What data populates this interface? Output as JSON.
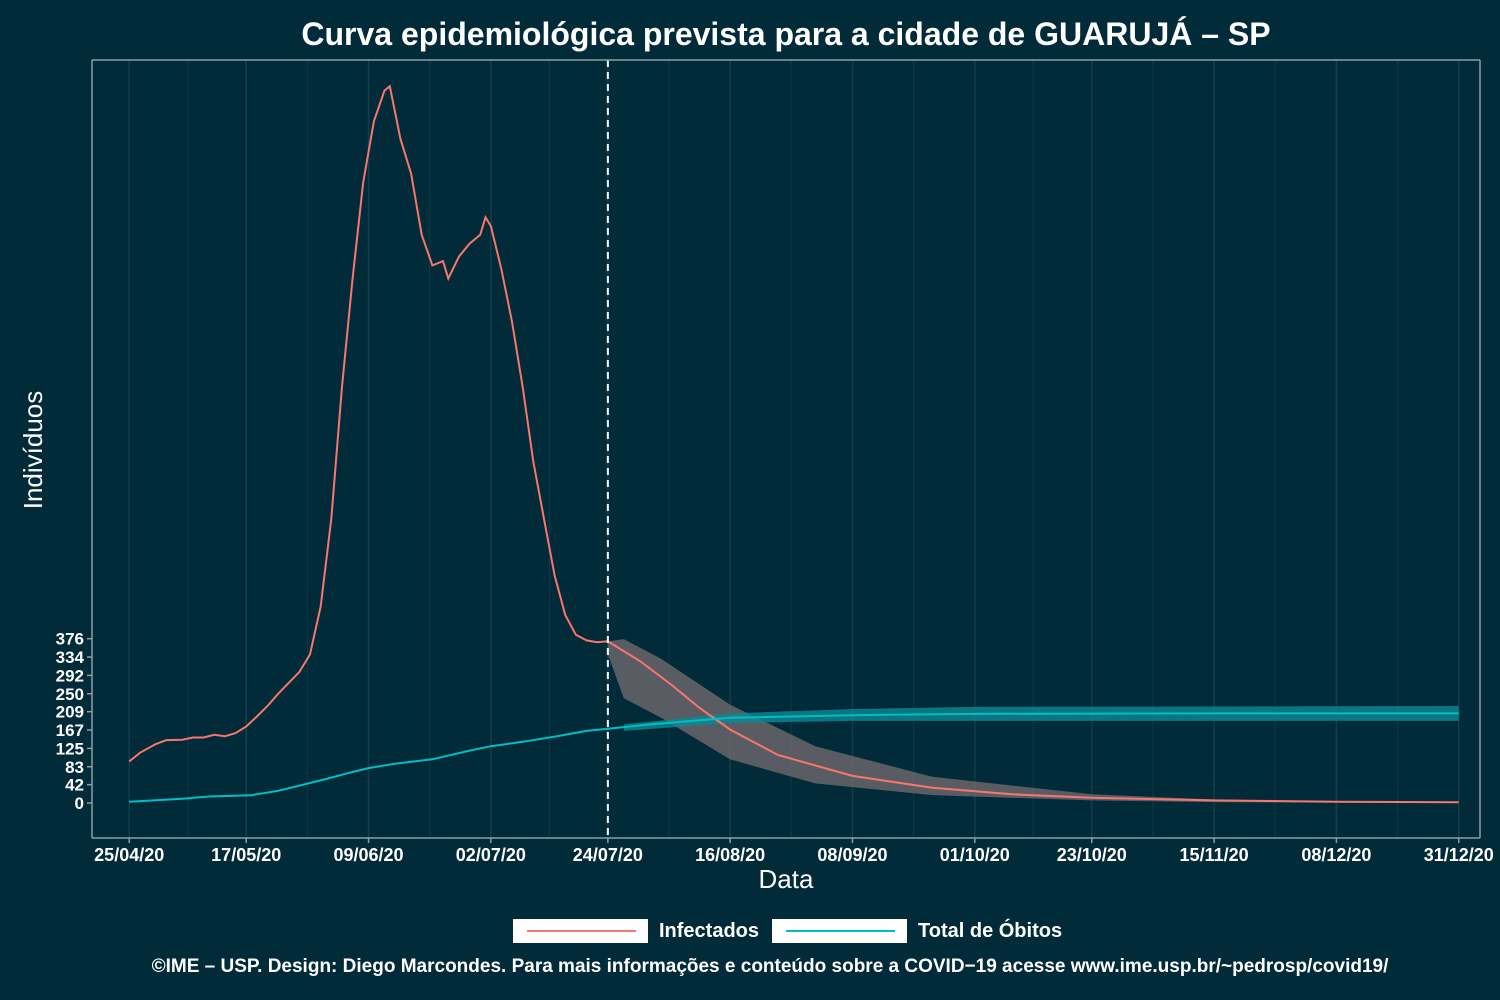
{
  "chart_data": {
    "type": "line",
    "title": "Curva epidemiológica prevista para a cidade de GUARUJÁ – SP",
    "xlabel": "Data",
    "ylabel": "Indivíduos",
    "x_range": [
      "2020-04-18",
      "2021-01-04"
    ],
    "y_range": [
      -80,
      1700
    ],
    "y_ticks": [
      0,
      42,
      83,
      125,
      167,
      209,
      250,
      292,
      334,
      376
    ],
    "y_tick_labels": [
      "0",
      "42",
      "83",
      "125",
      "167",
      "209",
      "250",
      "292",
      "334",
      "376"
    ],
    "x_ticks": [
      "2020-04-25",
      "2020-05-17",
      "2020-06-09",
      "2020-07-02",
      "2020-07-24",
      "2020-08-16",
      "2020-09-08",
      "2020-10-01",
      "2020-10-23",
      "2020-11-15",
      "2020-12-08",
      "2020-12-31"
    ],
    "x_tick_labels": [
      "25/04/20",
      "17/05/20",
      "09/06/20",
      "02/07/20",
      "24/07/20",
      "16/08/20",
      "08/09/20",
      "01/10/20",
      "23/10/20",
      "15/11/20",
      "08/12/20",
      "31/12/20"
    ],
    "vline": "2020-07-24",
    "grid": true,
    "legend_position": "bottom",
    "series": [
      {
        "name": "Infectados",
        "color": "#f8766d",
        "points": [
          [
            "2020-04-25",
            95
          ],
          [
            "2020-04-27",
            115
          ],
          [
            "2020-04-30",
            135
          ],
          [
            "2020-05-02",
            144
          ],
          [
            "2020-05-05",
            145
          ],
          [
            "2020-05-07",
            150
          ],
          [
            "2020-05-09",
            150
          ],
          [
            "2020-05-11",
            156
          ],
          [
            "2020-05-13",
            153
          ],
          [
            "2020-05-15",
            160
          ],
          [
            "2020-05-17",
            175
          ],
          [
            "2020-05-19",
            198
          ],
          [
            "2020-05-21",
            222
          ],
          [
            "2020-05-23",
            250
          ],
          [
            "2020-05-25",
            275
          ],
          [
            "2020-05-27",
            300
          ],
          [
            "2020-05-29",
            340
          ],
          [
            "2020-05-31",
            450
          ],
          [
            "2020-06-02",
            650
          ],
          [
            "2020-06-04",
            950
          ],
          [
            "2020-06-06",
            1200
          ],
          [
            "2020-06-08",
            1420
          ],
          [
            "2020-06-10",
            1560
          ],
          [
            "2020-06-12",
            1630
          ],
          [
            "2020-06-13",
            1640
          ],
          [
            "2020-06-15",
            1520
          ],
          [
            "2020-06-17",
            1440
          ],
          [
            "2020-06-19",
            1300
          ],
          [
            "2020-06-21",
            1230
          ],
          [
            "2020-06-23",
            1240
          ],
          [
            "2020-06-24",
            1200
          ],
          [
            "2020-06-26",
            1250
          ],
          [
            "2020-06-28",
            1280
          ],
          [
            "2020-06-30",
            1300
          ],
          [
            "2020-07-01",
            1340
          ],
          [
            "2020-07-02",
            1320
          ],
          [
            "2020-07-04",
            1220
          ],
          [
            "2020-07-06",
            1100
          ],
          [
            "2020-07-08",
            950
          ],
          [
            "2020-07-10",
            780
          ],
          [
            "2020-07-12",
            650
          ],
          [
            "2020-07-14",
            520
          ],
          [
            "2020-07-16",
            430
          ],
          [
            "2020-07-18",
            385
          ],
          [
            "2020-07-20",
            372
          ],
          [
            "2020-07-22",
            368
          ],
          [
            "2020-07-24",
            370
          ],
          [
            "2020-07-30",
            325
          ],
          [
            "2020-08-05",
            270
          ],
          [
            "2020-08-10",
            220
          ],
          [
            "2020-08-16",
            168
          ],
          [
            "2020-08-25",
            110
          ],
          [
            "2020-09-08",
            62
          ],
          [
            "2020-09-23",
            35
          ],
          [
            "2020-10-08",
            20
          ],
          [
            "2020-10-23",
            12
          ],
          [
            "2020-11-15",
            6
          ],
          [
            "2020-12-08",
            3
          ],
          [
            "2020-12-31",
            2
          ]
        ]
      },
      {
        "name": "Total de Óbitos",
        "color": "#00bfc4",
        "points": [
          [
            "2020-04-25",
            3
          ],
          [
            "2020-05-05",
            10
          ],
          [
            "2020-05-10",
            15
          ],
          [
            "2020-05-18",
            18
          ],
          [
            "2020-05-23",
            28
          ],
          [
            "2020-05-27",
            40
          ],
          [
            "2020-06-01",
            55
          ],
          [
            "2020-06-05",
            68
          ],
          [
            "2020-06-09",
            80
          ],
          [
            "2020-06-14",
            90
          ],
          [
            "2020-06-21",
            100
          ],
          [
            "2020-06-28",
            120
          ],
          [
            "2020-07-02",
            130
          ],
          [
            "2020-07-08",
            140
          ],
          [
            "2020-07-14",
            152
          ],
          [
            "2020-07-20",
            165
          ],
          [
            "2020-07-24",
            170
          ],
          [
            "2020-08-01",
            180
          ],
          [
            "2020-08-16",
            195
          ],
          [
            "2020-09-08",
            201
          ],
          [
            "2020-10-01",
            204
          ],
          [
            "2020-11-15",
            205
          ],
          [
            "2020-12-31",
            205
          ]
        ]
      }
    ],
    "bands": [
      {
        "series": "Infectados",
        "fill": "#6f6a6e",
        "upper": [
          [
            "2020-07-24",
            370
          ],
          [
            "2020-07-27",
            375
          ],
          [
            "2020-08-03",
            330
          ],
          [
            "2020-08-16",
            225
          ],
          [
            "2020-09-01",
            130
          ],
          [
            "2020-09-23",
            60
          ],
          [
            "2020-10-23",
            20
          ],
          [
            "2020-11-15",
            8
          ],
          [
            "2020-12-08",
            4
          ],
          [
            "2020-12-31",
            3
          ]
        ],
        "lower": [
          [
            "2020-07-24",
            340
          ],
          [
            "2020-07-27",
            240
          ],
          [
            "2020-08-03",
            195
          ],
          [
            "2020-08-16",
            100
          ],
          [
            "2020-09-01",
            45
          ],
          [
            "2020-09-23",
            18
          ],
          [
            "2020-10-23",
            6
          ],
          [
            "2020-11-15",
            2
          ],
          [
            "2020-12-08",
            1
          ],
          [
            "2020-12-31",
            1
          ]
        ]
      },
      {
        "series": "Total de Óbitos",
        "fill": "#0b8a93",
        "upper": [
          [
            "2020-07-27",
            180
          ],
          [
            "2020-08-16",
            205
          ],
          [
            "2020-09-08",
            215
          ],
          [
            "2020-10-01",
            220
          ],
          [
            "2020-12-31",
            222
          ]
        ],
        "lower": [
          [
            "2020-07-27",
            165
          ],
          [
            "2020-08-16",
            183
          ],
          [
            "2020-09-08",
            188
          ],
          [
            "2020-10-01",
            188
          ],
          [
            "2020-12-31",
            188
          ]
        ]
      }
    ]
  },
  "legend": {
    "infectados": "Infectados",
    "obitos": "Total de Óbitos",
    "infectados_color": "#f8766d",
    "obitos_color": "#00bfc4"
  },
  "caption": "©IME – USP. Design: Diego Marcondes. Para mais informações e conteúdo sobre a COVID−19 acesse www.ime.usp.br/~pedrosp/covid19/"
}
